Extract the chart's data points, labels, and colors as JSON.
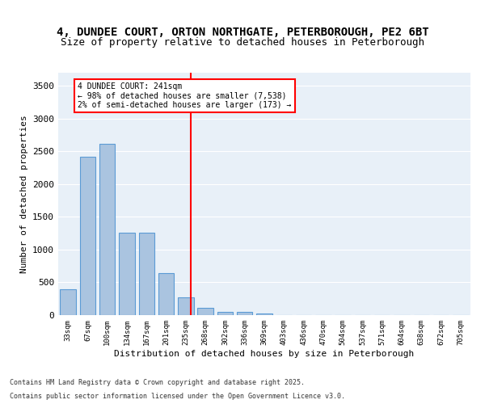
{
  "title_line1": "4, DUNDEE COURT, ORTON NORTHGATE, PETERBOROUGH, PE2 6BT",
  "title_line2": "Size of property relative to detached houses in Peterborough",
  "xlabel": "Distribution of detached houses by size in Peterborough",
  "ylabel": "Number of detached properties",
  "categories": [
    "33sqm",
    "67sqm",
    "100sqm",
    "134sqm",
    "167sqm",
    "201sqm",
    "235sqm",
    "268sqm",
    "302sqm",
    "336sqm",
    "369sqm",
    "403sqm",
    "436sqm",
    "470sqm",
    "504sqm",
    "537sqm",
    "571sqm",
    "604sqm",
    "638sqm",
    "672sqm",
    "705sqm"
  ],
  "bar_heights": [
    390,
    2420,
    2620,
    1260,
    1260,
    640,
    270,
    110,
    55,
    45,
    30,
    5,
    0,
    0,
    0,
    0,
    0,
    0,
    0,
    0,
    0
  ],
  "bar_color": "#aac4e0",
  "bar_edge_color": "#5b9bd5",
  "vline_x": 6.25,
  "vline_color": "red",
  "annotation_title": "4 DUNDEE COURT: 241sqm",
  "annotation_line2": "← 98% of detached houses are smaller (7,538)",
  "annotation_line3": "2% of semi-detached houses are larger (173) →",
  "annotation_box_color": "white",
  "annotation_box_edge": "red",
  "ylim": [
    0,
    3700
  ],
  "yticks": [
    0,
    500,
    1000,
    1500,
    2000,
    2500,
    3000,
    3500
  ],
  "bg_color": "#e8f0f8",
  "footer_line1": "Contains HM Land Registry data © Crown copyright and database right 2025.",
  "footer_line2": "Contains public sector information licensed under the Open Government Licence v3.0.",
  "title_fontsize": 10,
  "subtitle_fontsize": 9
}
